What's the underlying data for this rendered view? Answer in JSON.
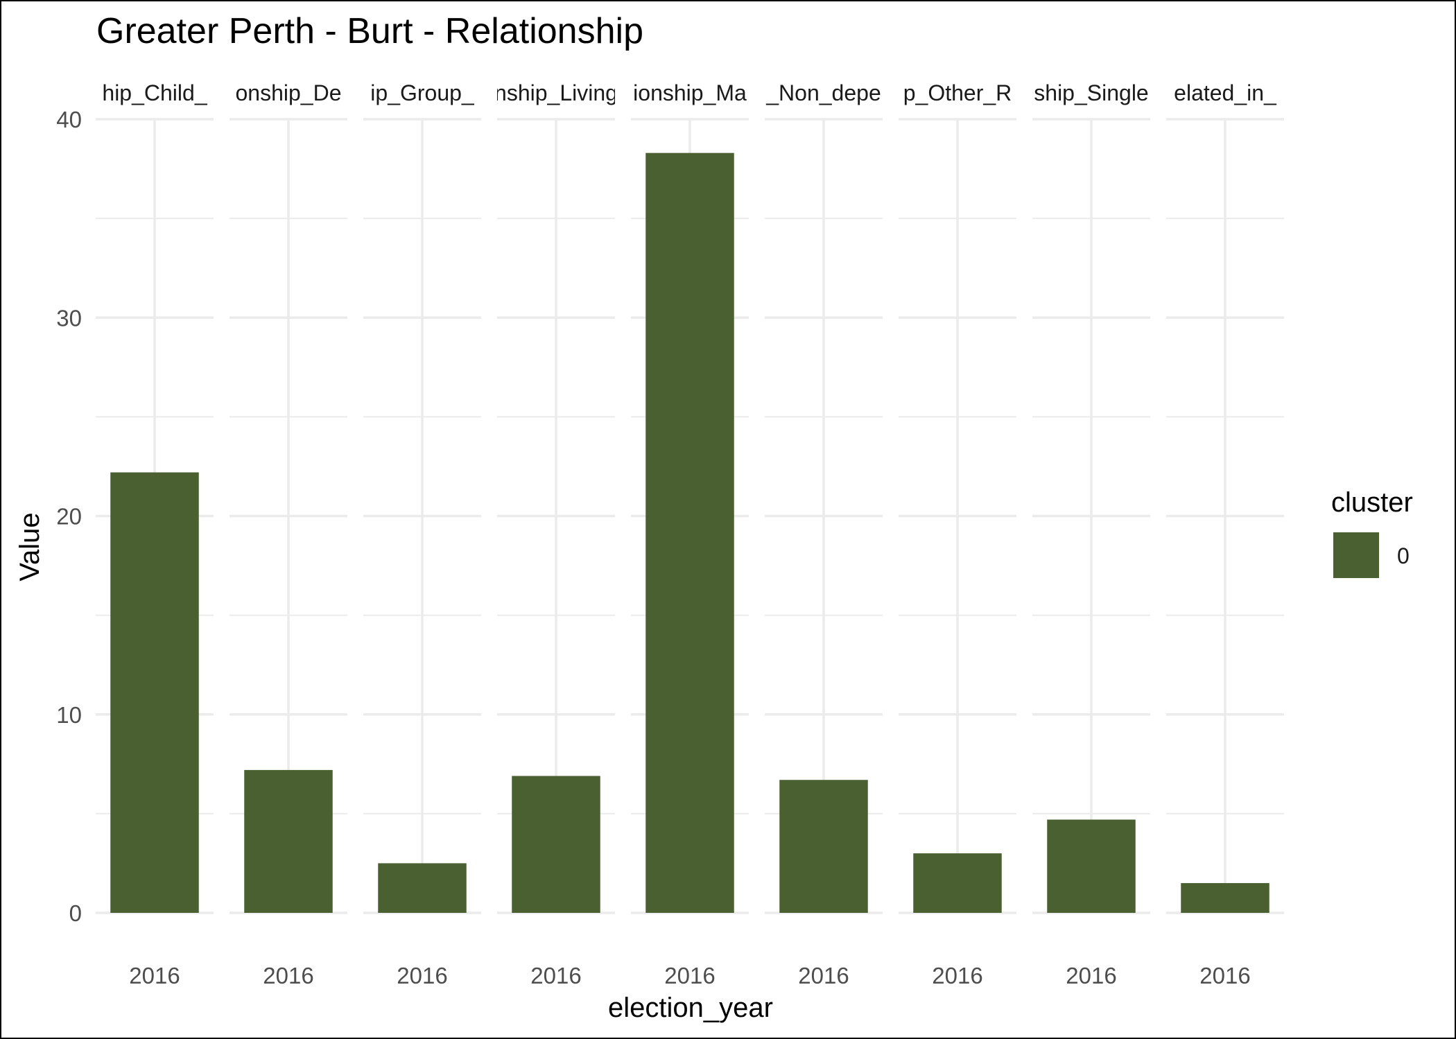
{
  "chart_data": {
    "type": "bar",
    "title": "Greater Perth - Burt - Relationship",
    "xlabel": "election_year",
    "ylabel": "Value",
    "ylim": [
      0,
      40
    ],
    "yticks": [
      0,
      10,
      20,
      30,
      40
    ],
    "grid": true,
    "facets": [
      {
        "strip": "hip_Child_",
        "category": "2016",
        "value": 22.2
      },
      {
        "strip": "onship_De",
        "category": "2016",
        "value": 7.2
      },
      {
        "strip": "ip_Group_",
        "category": "2016",
        "value": 2.5
      },
      {
        "strip": "nship_Living",
        "category": "2016",
        "value": 6.9
      },
      {
        "strip": "ionship_Ma",
        "category": "2016",
        "value": 38.3
      },
      {
        "strip": "_Non_depe",
        "category": "2016",
        "value": 6.7
      },
      {
        "strip": "p_Other_R",
        "category": "2016",
        "value": 3.0
      },
      {
        "strip": "ship_Single",
        "category": "2016",
        "value": 4.7
      },
      {
        "strip": "elated_in_",
        "category": "2016",
        "value": 1.5
      }
    ],
    "legend": {
      "title": "cluster",
      "placement": "right",
      "items": [
        {
          "label": "0",
          "color": "#4a6030"
        }
      ]
    },
    "colors": {
      "bar": "#4a6030",
      "grid": "#ebebeb"
    }
  }
}
